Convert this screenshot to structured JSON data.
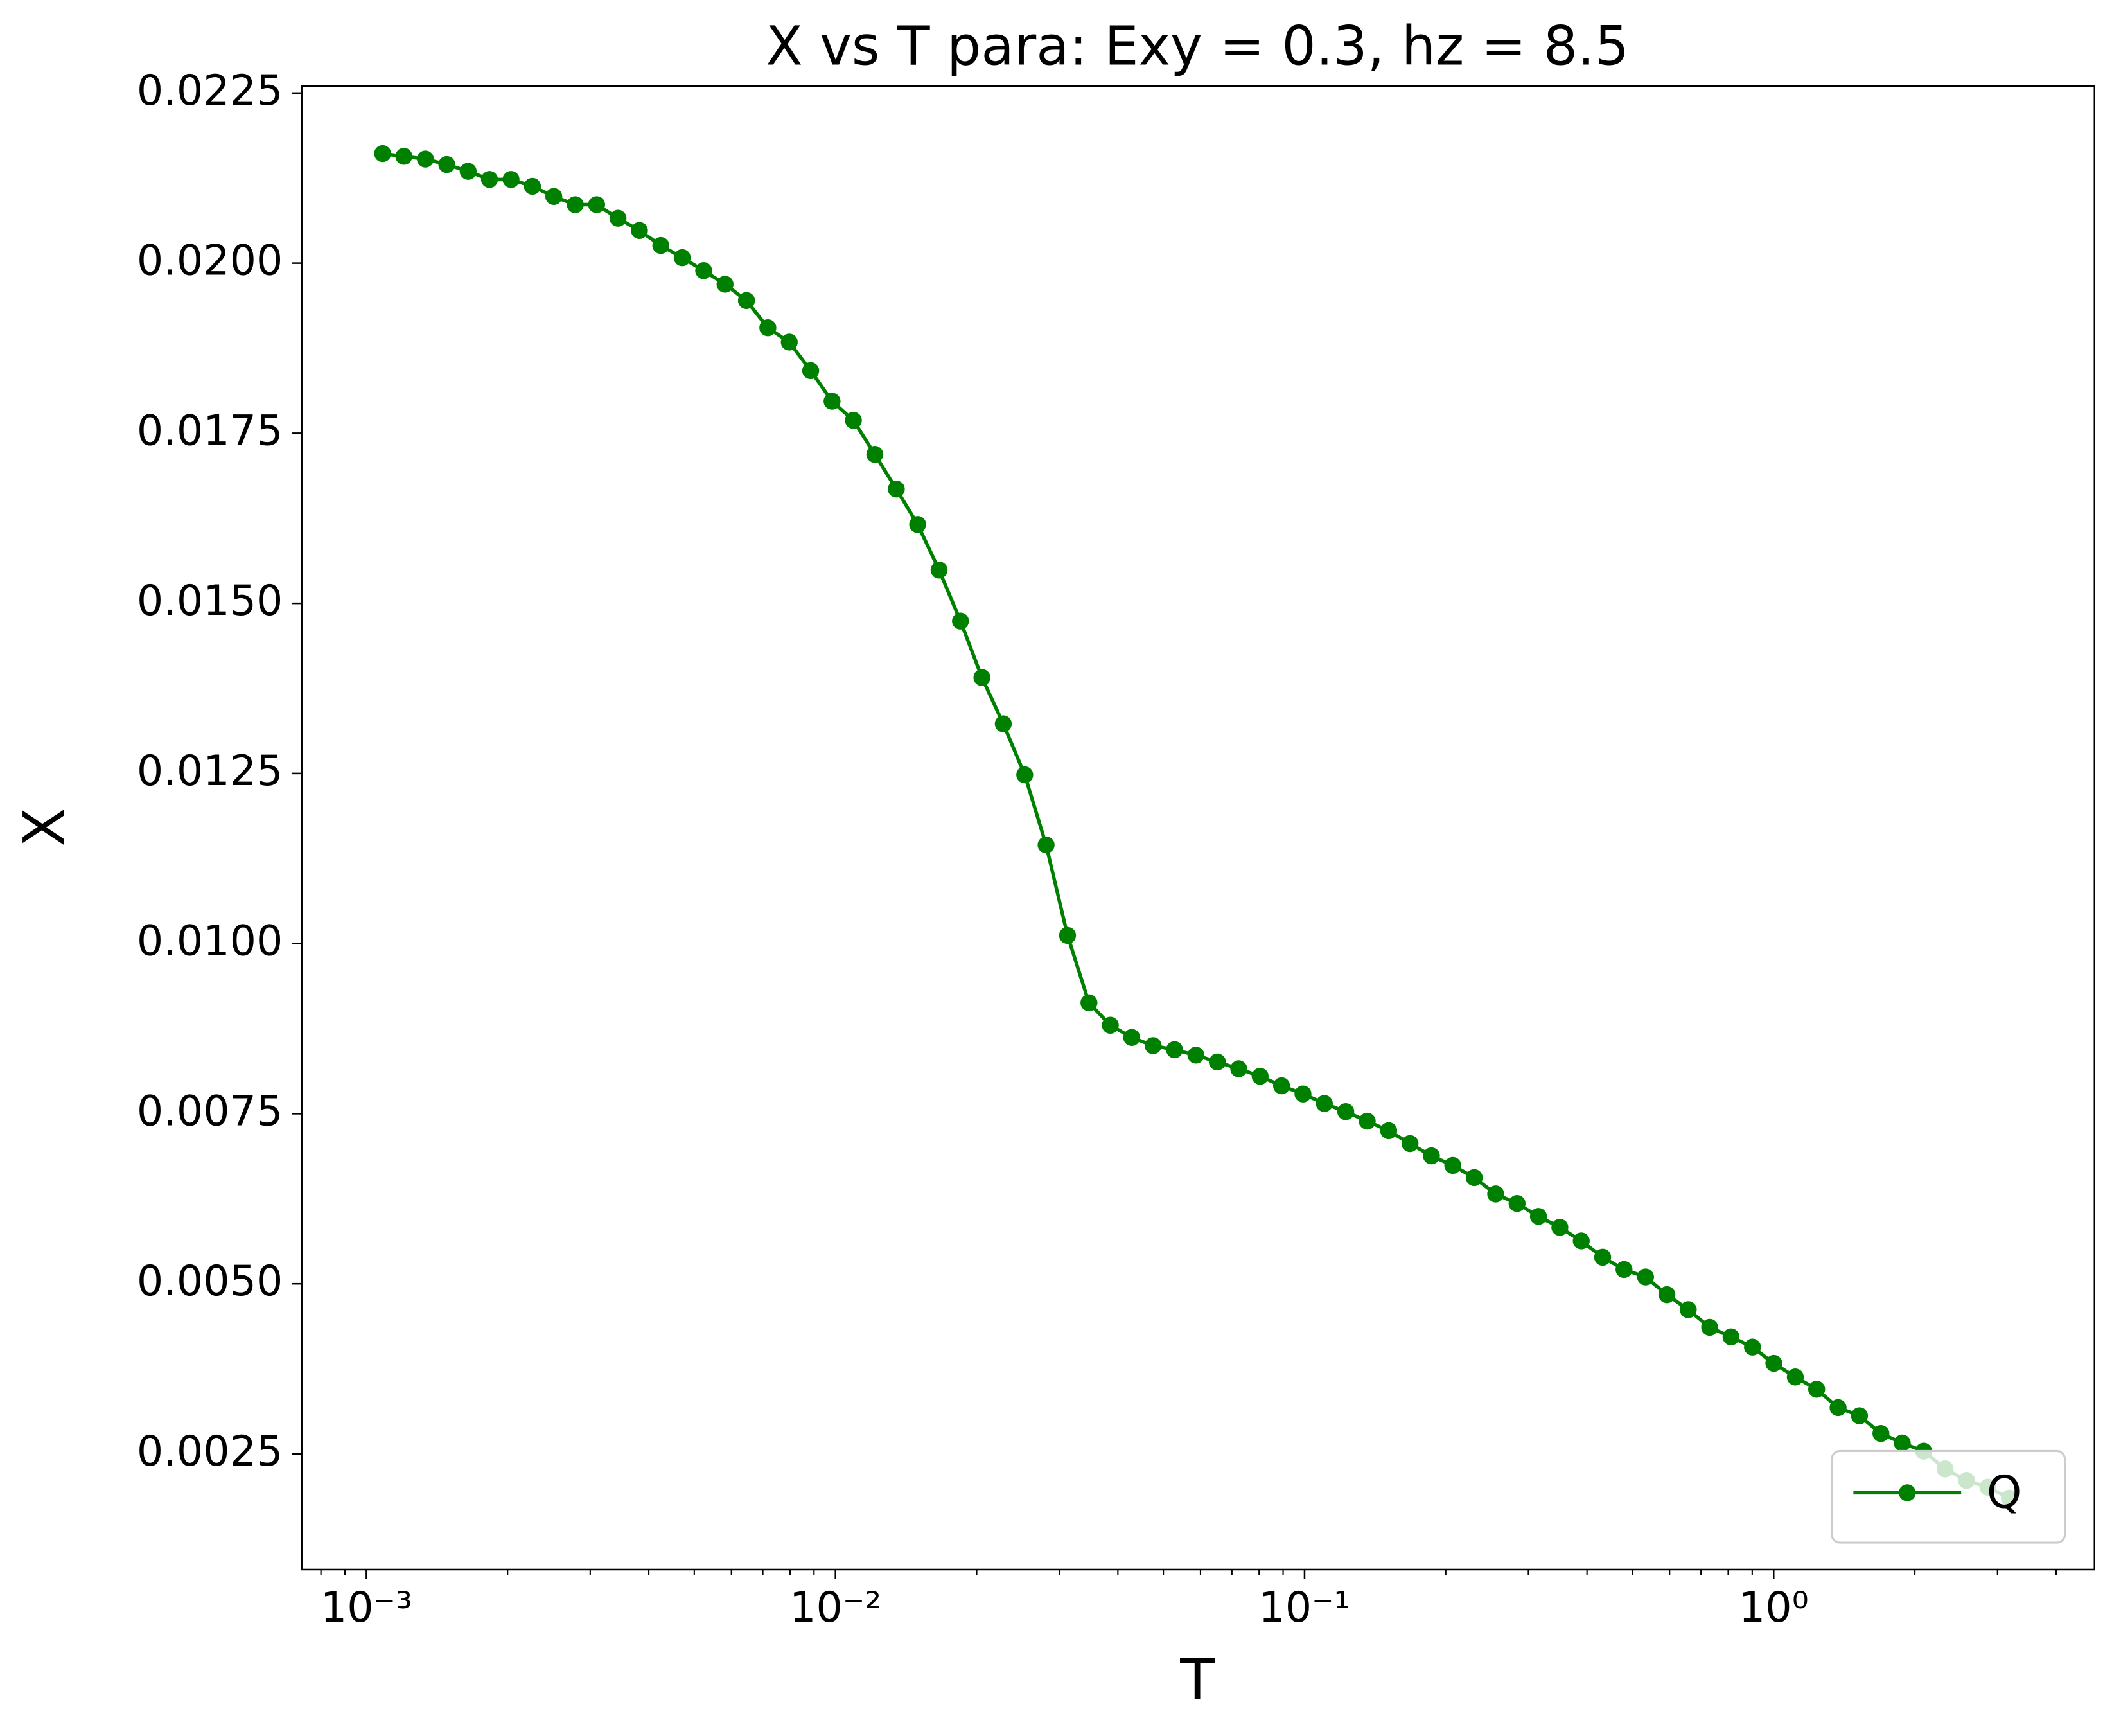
{
  "chart_data": {
    "type": "line",
    "title": "X vs T para: Exy = 0.3, hz = 8.5",
    "x_label": "T",
    "y_label": "X",
    "x_scale": "log",
    "x": [
      0.001083,
      0.001202,
      0.001336,
      0.001484,
      0.001648,
      0.00183,
      0.002034,
      0.002259,
      0.002509,
      0.002788,
      0.003096,
      0.003439,
      0.00382,
      0.004243,
      0.004713,
      0.005236,
      0.005815,
      0.00646,
      0.007175,
      0.007971,
      0.008854,
      0.009833,
      0.01092,
      0.01213,
      0.01348,
      0.01497,
      0.01663,
      0.01847,
      0.02052,
      0.02279,
      0.02532,
      0.02812,
      0.03124,
      0.0347,
      0.03854,
      0.04281,
      0.04755,
      0.05282,
      0.05867,
      0.06518,
      0.07239,
      0.08041,
      0.08933,
      0.09922,
      0.1102,
      0.1224,
      0.136,
      0.1511,
      0.1678,
      0.1864,
      0.207,
      0.23,
      0.2555,
      0.2838,
      0.3152,
      0.3501,
      0.3889,
      0.432,
      0.4797,
      0.5331,
      0.5921,
      0.6576,
      0.7305,
      0.8113,
      0.9012,
      1.001,
      1.112,
      1.235,
      1.372,
      1.524,
      1.693,
      1.88,
      2.088,
      2.32,
      2.577,
      2.862,
      3.18
    ],
    "series": [
      {
        "name": "Q",
        "color": "#008000",
        "values": [
          0.02161,
          0.02157,
          0.02153,
          0.02145,
          0.02135,
          0.02123,
          0.02123,
          0.02113,
          0.02098,
          0.02086,
          0.02086,
          0.02066,
          0.02048,
          0.02026,
          0.02008,
          0.01989,
          0.01969,
          0.01945,
          0.01905,
          0.01884,
          0.01842,
          0.01797,
          0.01769,
          0.01719,
          0.01668,
          0.01616,
          0.01549,
          0.01474,
          0.01391,
          0.01323,
          0.01248,
          0.01145,
          0.01012,
          0.00913,
          0.0088,
          0.00862,
          0.0085,
          0.00844,
          0.00836,
          0.00826,
          0.00816,
          0.00805,
          0.00791,
          0.00779,
          0.00765,
          0.00753,
          0.00739,
          0.00725,
          0.00706,
          0.00688,
          0.00674,
          0.00656,
          0.00632,
          0.00618,
          0.00599,
          0.00583,
          0.00563,
          0.00539,
          0.00521,
          0.0051,
          0.00484,
          0.00462,
          0.00436,
          0.00422,
          0.00407,
          0.00383,
          0.00363,
          0.00345,
          0.00318,
          0.00306,
          0.0028,
          0.00266,
          0.00254,
          0.00228,
          0.00211,
          0.00201,
          0.00185
        ]
      }
    ],
    "xlim": [
      0.000728,
      4.83
    ],
    "ylim": [
      0.0008,
      0.0226
    ],
    "xticks": [
      {
        "value": 0.001,
        "label": "10⁻³"
      },
      {
        "value": 0.01,
        "label": "10⁻²"
      },
      {
        "value": 0.1,
        "label": "10⁻¹"
      },
      {
        "value": 1,
        "label": "10⁰"
      }
    ],
    "xminorticks": [
      0.0008,
      0.0009,
      0.002,
      0.003,
      0.004,
      0.005,
      0.006,
      0.007,
      0.008,
      0.009,
      0.02,
      0.03,
      0.04,
      0.05,
      0.06,
      0.07,
      0.08,
      0.09,
      0.2,
      0.3,
      0.4,
      0.5,
      0.6,
      0.7,
      0.8,
      0.9,
      2,
      3,
      4
    ],
    "yticks": [
      0.0025,
      {
        "value": 0.005,
        "label": "0.0050"
      },
      0.0075,
      {
        "value": 0.01,
        "label": "0.0100"
      },
      0.0125,
      {
        "value": 0.015,
        "label": "0.0150"
      },
      0.0175,
      {
        "value": 0.02,
        "label": "0.0200"
      },
      0.0225
    ],
    "grid": false,
    "legend_position": "lower right"
  }
}
